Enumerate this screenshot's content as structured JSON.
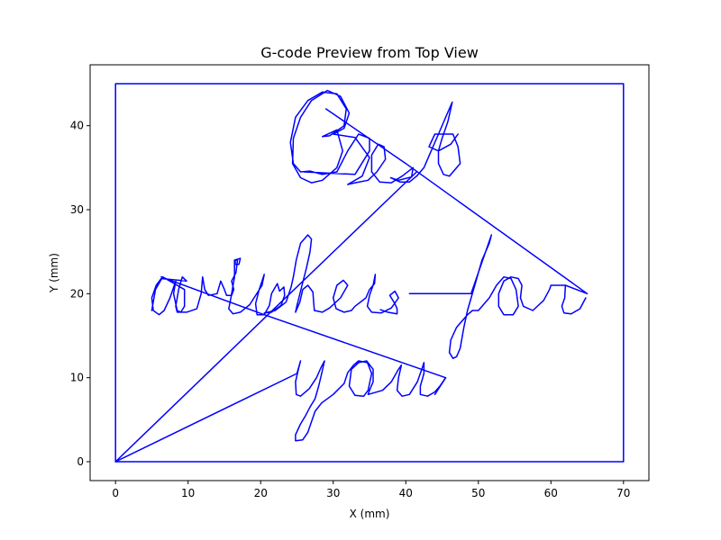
{
  "chart_data": {
    "type": "line",
    "title": "G-code Preview from Top View",
    "xlabel": "X (mm)",
    "ylabel": "Y (mm)",
    "xlim": [
      -3.5,
      73.5
    ],
    "ylim": [
      -2.25,
      47.25
    ],
    "xticks": [
      0,
      10,
      20,
      30,
      40,
      50,
      60,
      70
    ],
    "yticks": [
      0,
      10,
      20,
      30,
      40
    ],
    "grid": false,
    "series_color": "#0000ff",
    "series": [
      {
        "name": "border",
        "points": [
          [
            0,
            0
          ],
          [
            70,
            0
          ],
          [
            70,
            45
          ],
          [
            0,
            45
          ],
          [
            0,
            0
          ]
        ]
      },
      {
        "name": "travel-to-you",
        "points": [
          [
            0,
            0
          ],
          [
            25,
            10.5
          ]
        ]
      },
      {
        "name": "travel-to-wishes",
        "points": [
          [
            0,
            0
          ],
          [
            21,
            17.5
          ],
          [
            41.5,
            34.5
          ]
        ]
      },
      {
        "name": "travel-best-to-for",
        "points": [
          [
            29,
            42
          ],
          [
            40,
            35.5
          ],
          [
            65,
            20
          ],
          [
            62,
            21
          ]
        ]
      },
      {
        "name": "travel-wishes-to-you",
        "points": [
          [
            6.3,
            22
          ],
          [
            20.5,
            17.5
          ],
          [
            45.5,
            10
          ],
          [
            44,
            8
          ]
        ]
      },
      {
        "name": "word-Best",
        "points": [
          [
            26,
            34.5
          ],
          [
            33,
            34.2
          ],
          [
            35,
            37
          ],
          [
            35,
            38.5
          ],
          [
            33.5,
            39
          ],
          [
            32,
            37
          ],
          [
            30.5,
            34.5
          ],
          [
            28.5,
            34.2
          ],
          [
            26.8,
            34.6
          ],
          [
            25.5,
            34.5
          ],
          [
            24.5,
            35.5
          ],
          [
            24.1,
            38
          ],
          [
            24.8,
            41
          ],
          [
            26.5,
            43
          ],
          [
            28.5,
            44
          ],
          [
            30.5,
            43.8
          ],
          [
            31.8,
            42
          ],
          [
            31.5,
            40
          ],
          [
            29.5,
            38.8
          ],
          [
            28.5,
            38.7
          ],
          [
            30.5,
            39.5
          ],
          [
            31.3,
            37
          ],
          [
            30.5,
            35
          ],
          [
            28.5,
            33.5
          ],
          [
            27,
            33.2
          ],
          [
            25.5,
            33.8
          ],
          [
            24.4,
            35.5
          ],
          [
            24.5,
            38.5
          ],
          [
            25.5,
            41
          ],
          [
            27,
            43
          ],
          [
            29.2,
            44.2
          ],
          [
            31,
            43.5
          ],
          [
            32.2,
            41.5
          ],
          [
            31.5,
            39.7
          ],
          [
            30,
            39
          ],
          [
            33,
            38.6
          ],
          [
            35,
            36.2
          ],
          [
            34,
            34
          ],
          [
            32,
            33
          ],
          [
            33,
            33.2
          ],
          [
            34.8,
            33.5
          ],
          [
            36,
            34.5
          ],
          [
            37.2,
            36
          ],
          [
            37,
            37.5
          ],
          [
            36.2,
            37.8
          ],
          [
            35.3,
            36.5
          ],
          [
            35.3,
            34.5
          ],
          [
            36.4,
            33.3
          ],
          [
            38,
            33.2
          ],
          [
            39.5,
            34
          ],
          [
            41,
            35
          ],
          [
            40.8,
            33.9
          ],
          [
            39,
            33.5
          ],
          [
            37.9,
            33.8
          ],
          [
            39.2,
            33.3
          ],
          [
            40.5,
            33.3
          ],
          [
            41.5,
            34
          ],
          [
            42.5,
            35
          ],
          [
            43.5,
            37
          ],
          [
            44.5,
            39
          ],
          [
            45.5,
            41
          ],
          [
            46.4,
            42.8
          ],
          [
            45.8,
            40.5
          ],
          [
            45,
            38.5
          ],
          [
            44.5,
            37
          ],
          [
            44.5,
            35.5
          ],
          [
            45.2,
            34.2
          ],
          [
            46,
            34
          ],
          [
            47.5,
            35.5
          ],
          [
            47.2,
            37.5
          ],
          [
            46.5,
            39
          ],
          [
            44,
            39
          ],
          [
            43.2,
            37.5
          ],
          [
            44.5,
            37
          ],
          [
            46.2,
            37.8
          ],
          [
            47.2,
            39
          ]
        ]
      },
      {
        "name": "word-wishes",
        "points": [
          [
            5,
            18
          ],
          [
            5.5,
            20.5
          ],
          [
            6.5,
            22
          ],
          [
            9.5,
            20.5
          ],
          [
            9.5,
            18.5
          ],
          [
            9,
            17.8
          ],
          [
            8.5,
            18
          ],
          [
            8,
            20
          ],
          [
            8.3,
            21.5
          ],
          [
            7.5,
            19.5
          ],
          [
            6.7,
            18
          ],
          [
            6,
            17.5
          ],
          [
            5.2,
            18
          ],
          [
            5,
            19.5
          ],
          [
            5.6,
            21
          ],
          [
            6.3,
            21.8
          ],
          [
            9.8,
            21.5
          ],
          [
            9.2,
            22
          ],
          [
            8.7,
            20.5
          ],
          [
            8.3,
            18.5
          ],
          [
            8.5,
            17.8
          ],
          [
            9.8,
            17.8
          ],
          [
            11.2,
            18.2
          ],
          [
            11.8,
            20
          ],
          [
            12,
            22
          ],
          [
            12.3,
            20.5
          ],
          [
            12.8,
            19.8
          ],
          [
            14,
            20
          ],
          [
            14.5,
            21.5
          ],
          [
            15,
            20.5
          ],
          [
            15.3,
            19.8
          ],
          [
            16,
            19.8
          ],
          [
            16.3,
            20.5
          ],
          [
            16,
            21.5
          ],
          [
            16.6,
            22.5
          ],
          [
            16.8,
            24
          ],
          [
            16.5,
            24
          ],
          [
            16.5,
            23.5
          ],
          [
            17,
            23.5
          ],
          [
            17.2,
            24.2
          ],
          [
            16.4,
            24
          ],
          [
            16.4,
            22
          ],
          [
            15.9,
            19.5
          ],
          [
            15.6,
            18.2
          ],
          [
            16.2,
            17.6
          ],
          [
            17.2,
            17.8
          ],
          [
            18.5,
            18.7
          ],
          [
            20.2,
            21
          ],
          [
            20.5,
            22.3
          ],
          [
            19.8,
            20.5
          ],
          [
            19.3,
            18.8
          ],
          [
            19.5,
            17.5
          ],
          [
            20.5,
            17.5
          ],
          [
            21.2,
            18.6
          ],
          [
            21.5,
            20
          ],
          [
            22.3,
            21.2
          ],
          [
            22.6,
            20.3
          ],
          [
            23.2,
            20.8
          ],
          [
            23.3,
            19.8
          ],
          [
            22.8,
            18.6
          ],
          [
            21.5,
            17.8
          ],
          [
            20.5,
            17.7
          ],
          [
            22,
            18
          ],
          [
            23.5,
            19
          ],
          [
            24.2,
            20.8
          ],
          [
            24.5,
            22
          ],
          [
            24.9,
            24
          ],
          [
            25.5,
            26
          ],
          [
            26.5,
            27
          ],
          [
            27,
            26.5
          ],
          [
            26.8,
            25
          ],
          [
            26.3,
            23
          ],
          [
            25.7,
            21
          ],
          [
            25,
            18.6
          ],
          [
            24.8,
            17.8
          ],
          [
            25.4,
            19
          ],
          [
            25.8,
            20.5
          ],
          [
            26.5,
            21
          ],
          [
            27.2,
            20.2
          ],
          [
            27.3,
            19
          ],
          [
            27.4,
            18
          ],
          [
            28.5,
            17.8
          ],
          [
            29.5,
            18.3
          ],
          [
            31,
            19.5
          ],
          [
            32,
            21
          ],
          [
            31.4,
            21.6
          ],
          [
            30.5,
            21
          ],
          [
            30,
            19.5
          ],
          [
            30.4,
            18.2
          ],
          [
            31.5,
            17.8
          ],
          [
            32.5,
            18
          ],
          [
            33,
            18.5
          ],
          [
            34.5,
            19.5
          ],
          [
            35,
            20.5
          ],
          [
            35.5,
            21
          ],
          [
            35.7,
            21.2
          ],
          [
            35.8,
            22.3
          ],
          [
            35.5,
            21
          ],
          [
            35,
            19.8
          ],
          [
            34.7,
            18.5
          ],
          [
            35.3,
            17.8
          ],
          [
            36.6,
            17.7
          ],
          [
            38,
            18.3
          ],
          [
            39,
            19.5
          ],
          [
            38.5,
            20.3
          ],
          [
            37.8,
            19.8
          ],
          [
            38.5,
            18.8
          ],
          [
            38.8,
            18.2
          ],
          [
            38.8,
            17.6
          ],
          [
            37.5,
            17.8
          ],
          [
            36.5,
            18.1
          ]
        ]
      },
      {
        "name": "word-for",
        "points": [
          [
            40.5,
            20
          ],
          [
            49,
            20
          ],
          [
            51,
            25
          ],
          [
            51.8,
            27
          ],
          [
            51.5,
            26
          ],
          [
            50.5,
            24
          ],
          [
            49.5,
            21
          ],
          [
            48.5,
            18
          ],
          [
            48,
            16
          ],
          [
            47.5,
            13.5
          ],
          [
            47,
            12.5
          ],
          [
            46.5,
            12.3
          ],
          [
            46,
            13
          ],
          [
            46.2,
            14.5
          ],
          [
            47,
            16
          ],
          [
            48.5,
            17.5
          ],
          [
            49.2,
            18
          ],
          [
            50,
            18
          ],
          [
            51.5,
            19.5
          ],
          [
            52.5,
            21
          ],
          [
            53.5,
            22
          ],
          [
            54.5,
            21.8
          ],
          [
            55.2,
            20.5
          ],
          [
            55.5,
            18.5
          ],
          [
            54.8,
            17.5
          ],
          [
            53.5,
            17.5
          ],
          [
            52.8,
            18.5
          ],
          [
            52.8,
            20
          ],
          [
            53.5,
            21.5
          ],
          [
            54.5,
            22
          ],
          [
            55.5,
            21.8
          ],
          [
            56,
            21
          ],
          [
            55.8,
            19.5
          ],
          [
            56.2,
            18.5
          ],
          [
            57.5,
            18
          ],
          [
            59,
            19.2
          ],
          [
            59.8,
            20.5
          ],
          [
            60,
            21
          ],
          [
            62,
            21
          ],
          [
            61.9,
            19.5
          ],
          [
            61.5,
            18.5
          ],
          [
            61.8,
            17.7
          ],
          [
            62.8,
            17.6
          ],
          [
            64,
            18.2
          ],
          [
            64.8,
            19.5
          ]
        ]
      },
      {
        "name": "word-you",
        "points": [
          [
            25,
            10.5
          ],
          [
            25.5,
            12
          ],
          [
            25.2,
            11
          ],
          [
            24.8,
            9.5
          ],
          [
            24.9,
            8
          ],
          [
            25.5,
            7.8
          ],
          [
            26.7,
            8.7
          ],
          [
            27.7,
            10
          ],
          [
            28.3,
            11.2
          ],
          [
            28.8,
            12
          ],
          [
            28.4,
            10.5
          ],
          [
            28,
            9
          ],
          [
            27.5,
            7.5
          ],
          [
            26.8,
            6.5
          ],
          [
            26.2,
            5.5
          ],
          [
            25.5,
            4.5
          ],
          [
            24.8,
            3.2
          ],
          [
            24.8,
            2.5
          ],
          [
            25.8,
            2.6
          ],
          [
            26.5,
            3.5
          ],
          [
            27.5,
            6
          ],
          [
            28.4,
            7
          ],
          [
            30,
            8
          ],
          [
            31.5,
            9.3
          ],
          [
            32,
            10.6
          ],
          [
            32.8,
            11.5
          ],
          [
            33.5,
            12
          ],
          [
            34.7,
            11.8
          ],
          [
            35.3,
            10.5
          ],
          [
            34.8,
            8.5
          ],
          [
            34.2,
            7.8
          ],
          [
            33,
            7.9
          ],
          [
            32.2,
            9
          ],
          [
            32.5,
            11
          ],
          [
            33.5,
            11.8
          ],
          [
            34.6,
            12
          ],
          [
            35.5,
            11
          ],
          [
            35.5,
            9.5
          ],
          [
            35,
            8.5
          ],
          [
            34.8,
            8
          ],
          [
            36.8,
            8.5
          ],
          [
            38,
            9.5
          ],
          [
            39,
            11
          ],
          [
            39.4,
            11.5
          ],
          [
            39,
            10
          ],
          [
            38.8,
            8.5
          ],
          [
            39.5,
            7.8
          ],
          [
            40.5,
            8
          ],
          [
            41.6,
            9.5
          ],
          [
            42.2,
            11
          ],
          [
            42.5,
            11.8
          ],
          [
            42.5,
            10.5
          ],
          [
            42,
            9
          ],
          [
            42,
            8
          ],
          [
            43,
            7.8
          ],
          [
            44,
            8.3
          ],
          [
            44.7,
            9
          ],
          [
            45.5,
            10
          ]
        ]
      }
    ]
  }
}
